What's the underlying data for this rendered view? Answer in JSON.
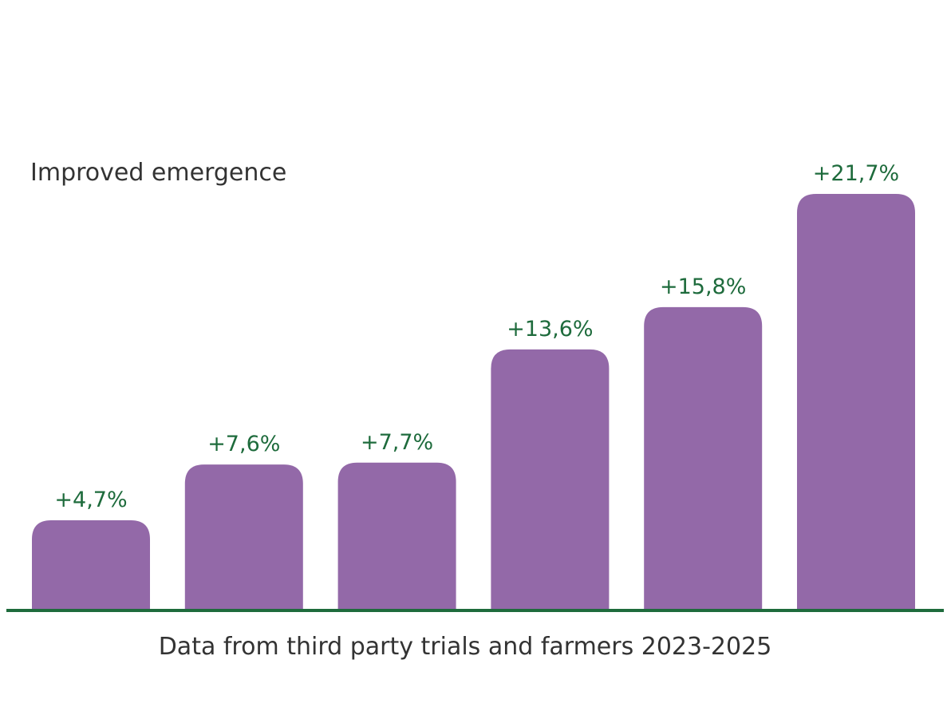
{
  "chart_data": {
    "type": "bar",
    "title": "Improved emergence",
    "subtitle": "",
    "xlabel": "",
    "ylabel": "",
    "caption": "Data from third party trials and farmers 2023-2025",
    "categories": [
      "",
      "",
      "",
      "",
      "",
      ""
    ],
    "values": [
      4.7,
      7.6,
      7.7,
      13.6,
      15.8,
      21.7
    ],
    "value_labels": [
      "+4,7%",
      "+7,6%",
      "+7,7%",
      "+13,6%",
      "+15,8%",
      "+21,7%"
    ],
    "ylim": [
      0,
      21.7
    ],
    "grid": false,
    "legend": "none",
    "colors": {
      "bar": "#9369a8",
      "label": "#1e6b3c",
      "baseline": "#1e6b3c",
      "text": "#333333"
    }
  }
}
